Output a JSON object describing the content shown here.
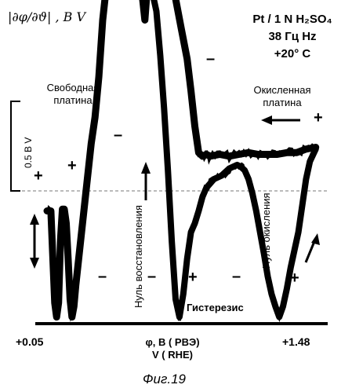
{
  "chart_data": {
    "type": "line",
    "ylabel": "|∂φ/∂ϑ| , В  V",
    "x_range": [
      0.05,
      1.48
    ],
    "x_tick_labels": [
      "+0.05",
      "+1.48"
    ],
    "x_axis_label_line1": "φ, В ( РВЭ)",
    "x_axis_label_line2": "V ( RHE)",
    "scale_bar_label": "0.5 В  V",
    "scale_bar_value": 0.5,
    "conditions": {
      "line1": "Pt / 1 N H₂SO₄",
      "line2": "38 Гц  Hz",
      "line3": "+20° C"
    },
    "annotations": {
      "free_platinum": [
        "Свободная",
        "платина"
      ],
      "oxidized_platinum": [
        "Окисленная",
        "платина"
      ],
      "reduction_zero": "Нуль восстановления",
      "oxidation_zero": "Нуль окисления",
      "hysteresis": "Гистерезис"
    },
    "signs": {
      "plus": "+",
      "minus": "–"
    },
    "series": [
      {
        "direction": "anodic",
        "x": [
          0.05,
          0.07,
          0.09,
          0.1,
          0.11,
          0.12,
          0.13,
          0.14,
          0.15,
          0.16,
          0.17,
          0.18,
          0.19,
          0.2,
          0.22,
          0.24,
          0.26,
          0.28,
          0.3,
          0.32,
          0.34,
          0.36,
          0.38,
          0.4,
          0.42,
          0.44,
          0.46,
          0.48,
          0.5,
          0.52,
          0.54,
          0.55,
          0.56,
          0.57,
          0.58,
          0.6,
          0.62,
          0.64,
          0.66,
          0.68,
          0.7,
          0.72,
          0.75,
          0.78,
          0.8,
          0.82,
          0.84,
          0.86,
          0.88,
          0.9,
          0.95,
          1.0,
          1.05,
          1.1,
          1.15,
          1.2,
          1.25,
          1.3,
          1.35,
          1.4,
          1.45
        ],
        "values": [
          0.62,
          0.62,
          0.1,
          0.02,
          0.1,
          0.45,
          0.63,
          0.63,
          0.55,
          0.35,
          0.12,
          0.02,
          0.08,
          0.2,
          0.4,
          0.6,
          0.8,
          1.0,
          1.15,
          1.38,
          1.7,
          1.9,
          2.0,
          1.95,
          1.98,
          2.0,
          1.97,
          2.02,
          1.98,
          2.05,
          1.9,
          1.8,
          1.7,
          1.85,
          1.92,
          1.95,
          2.05,
          2.1,
          1.95,
          1.9,
          1.9,
          1.82,
          1.65,
          1.48,
          1.3,
          1.1,
          0.95,
          0.93,
          0.94,
          0.93,
          0.94,
          0.93,
          0.94,
          0.95,
          0.94,
          0.94,
          0.94,
          0.95,
          0.95,
          0.97,
          0.98
        ]
      },
      {
        "direction": "cathodic",
        "x": [
          1.45,
          1.42,
          1.4,
          1.38,
          1.36,
          1.34,
          1.32,
          1.3,
          1.28,
          1.26,
          1.24,
          1.22,
          1.2,
          1.18,
          1.16,
          1.14,
          1.12,
          1.1,
          1.08,
          1.06,
          1.04,
          1.0,
          0.96,
          0.92,
          0.88,
          0.86,
          0.84,
          0.82,
          0.8,
          0.78,
          0.76,
          0.74,
          0.72,
          0.7,
          0.68,
          0.66,
          0.64,
          0.62,
          0.6,
          0.58,
          0.56,
          0.55
        ],
        "values": [
          0.97,
          0.9,
          0.8,
          0.65,
          0.5,
          0.4,
          0.3,
          0.18,
          0.08,
          0.02,
          0.08,
          0.15,
          0.25,
          0.38,
          0.5,
          0.62,
          0.72,
          0.8,
          0.85,
          0.87,
          0.88,
          0.86,
          0.82,
          0.8,
          0.75,
          0.7,
          0.62,
          0.55,
          0.5,
          0.35,
          0.15,
          0.02,
          0.12,
          0.45,
          0.85,
          1.2,
          1.5,
          1.75,
          1.85,
          1.9,
          1.85,
          1.8
        ]
      }
    ]
  },
  "caption": "Фиг.19"
}
